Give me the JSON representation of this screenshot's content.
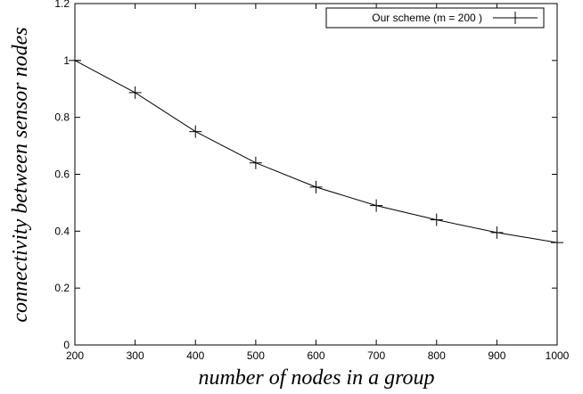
{
  "chart_data": {
    "type": "line",
    "title": "",
    "xlabel": "number of nodes in a group",
    "ylabel": "connectivity between sensor nodes",
    "xlim": [
      200,
      1000
    ],
    "ylim": [
      0,
      1.2
    ],
    "x_ticks": [
      "200",
      "300",
      "400",
      "500",
      "600",
      "700",
      "800",
      "900",
      "1000"
    ],
    "y_ticks": [
      "0",
      "0.2",
      "0.4",
      "0.6",
      "0.8",
      "1",
      "1.2"
    ],
    "grid": false,
    "legend_position": "top-right",
    "series": [
      {
        "name": "Our scheme (m = 200 )",
        "marker": "plus",
        "color": "#000000",
        "x": [
          200,
          300,
          400,
          500,
          600,
          700,
          800,
          900,
          1000
        ],
        "y": [
          1.0,
          0.887,
          0.75,
          0.64,
          0.555,
          0.49,
          0.44,
          0.395,
          0.36
        ]
      }
    ]
  }
}
